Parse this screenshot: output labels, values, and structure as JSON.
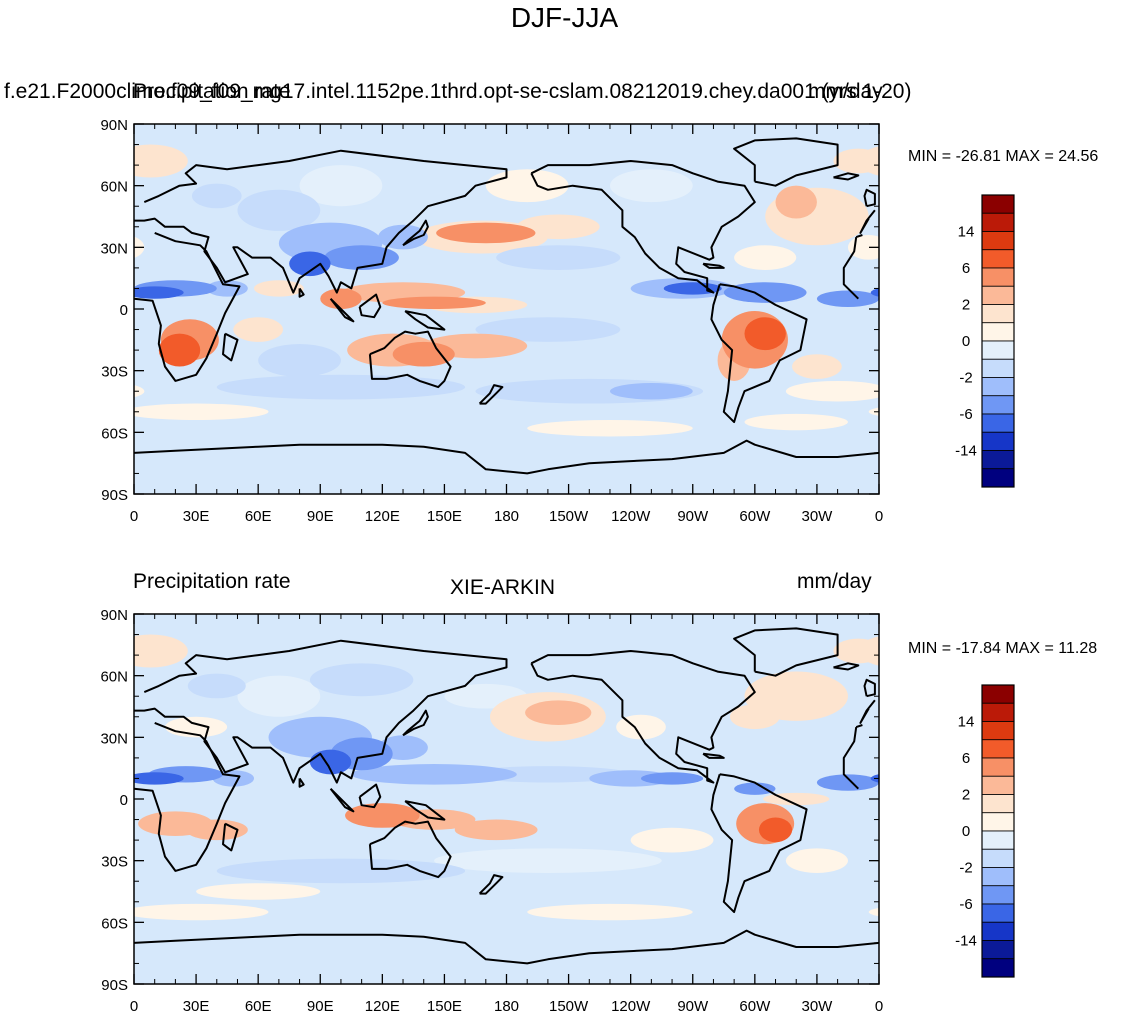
{
  "title": "DJF-JJA",
  "panel_top": {
    "left_label": "f.e21.F2000climo.f09_f09_mg17.intel.1152pe.1thrd.opt-se-cslam.08212019.chey.da001 (yrs 1-20)",
    "overlay_left": "Precipitation rate",
    "right_label": "mm/day",
    "minmax": "MIN = -26.81  MAX =  24.56"
  },
  "panel_bottom": {
    "left_label": "Precipitation rate",
    "center_label": "XIE-ARKIN",
    "right_label": "mm/day",
    "minmax": "MIN = -17.84  MAX =  11.28"
  },
  "axes": {
    "lat_labels": [
      "90N",
      "60N",
      "30N",
      "0",
      "30S",
      "60S",
      "90S"
    ],
    "lon_labels": [
      "0",
      "30E",
      "60E",
      "90E",
      "120E",
      "150E",
      "180",
      "150W",
      "120W",
      "90W",
      "60W",
      "30W",
      "0"
    ]
  },
  "colorbar": {
    "labels": [
      "14",
      "6",
      "2",
      "0",
      "-2",
      "-6",
      "-14"
    ],
    "colors": [
      "#8b0000",
      "#bb1a08",
      "#dd3a10",
      "#f25b2a",
      "#f79066",
      "#fbb998",
      "#fde4cf",
      "#fff5e8",
      "#e4f0fb",
      "#c6dcfb",
      "#9fbefb",
      "#6f97f4",
      "#3a66e6",
      "#1636c8",
      "#0b1a98",
      "#00007f"
    ]
  },
  "palette": {
    "ocean_bg": "#d6e8fb",
    "coast": "#000000"
  }
}
